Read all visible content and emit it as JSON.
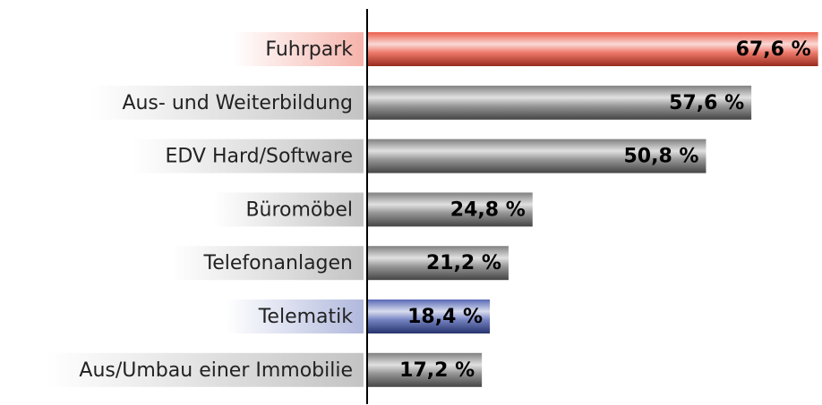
{
  "chart_data": {
    "type": "bar",
    "orientation": "horizontal",
    "categories": [
      "Fuhrpark",
      "Aus- und Weiterbildung",
      "EDV Hard/Software",
      "Büromöbel",
      "Telefonanlagen",
      "Telematik",
      "Aus/Umbau einer Immobilie"
    ],
    "values": [
      67.6,
      57.6,
      50.8,
      24.8,
      21.2,
      18.4,
      17.2
    ],
    "value_labels": [
      "67,6 %",
      "57,6 %",
      "50,8 %",
      "24,8 %",
      "21,2 %",
      "18,4 %",
      "17,2 %"
    ],
    "colors": [
      "#e8412c",
      "#6a6a6a",
      "#6a6a6a",
      "#6a6a6a",
      "#6a6a6a",
      "#3a4ea8",
      "#6a6a6a"
    ]
  }
}
